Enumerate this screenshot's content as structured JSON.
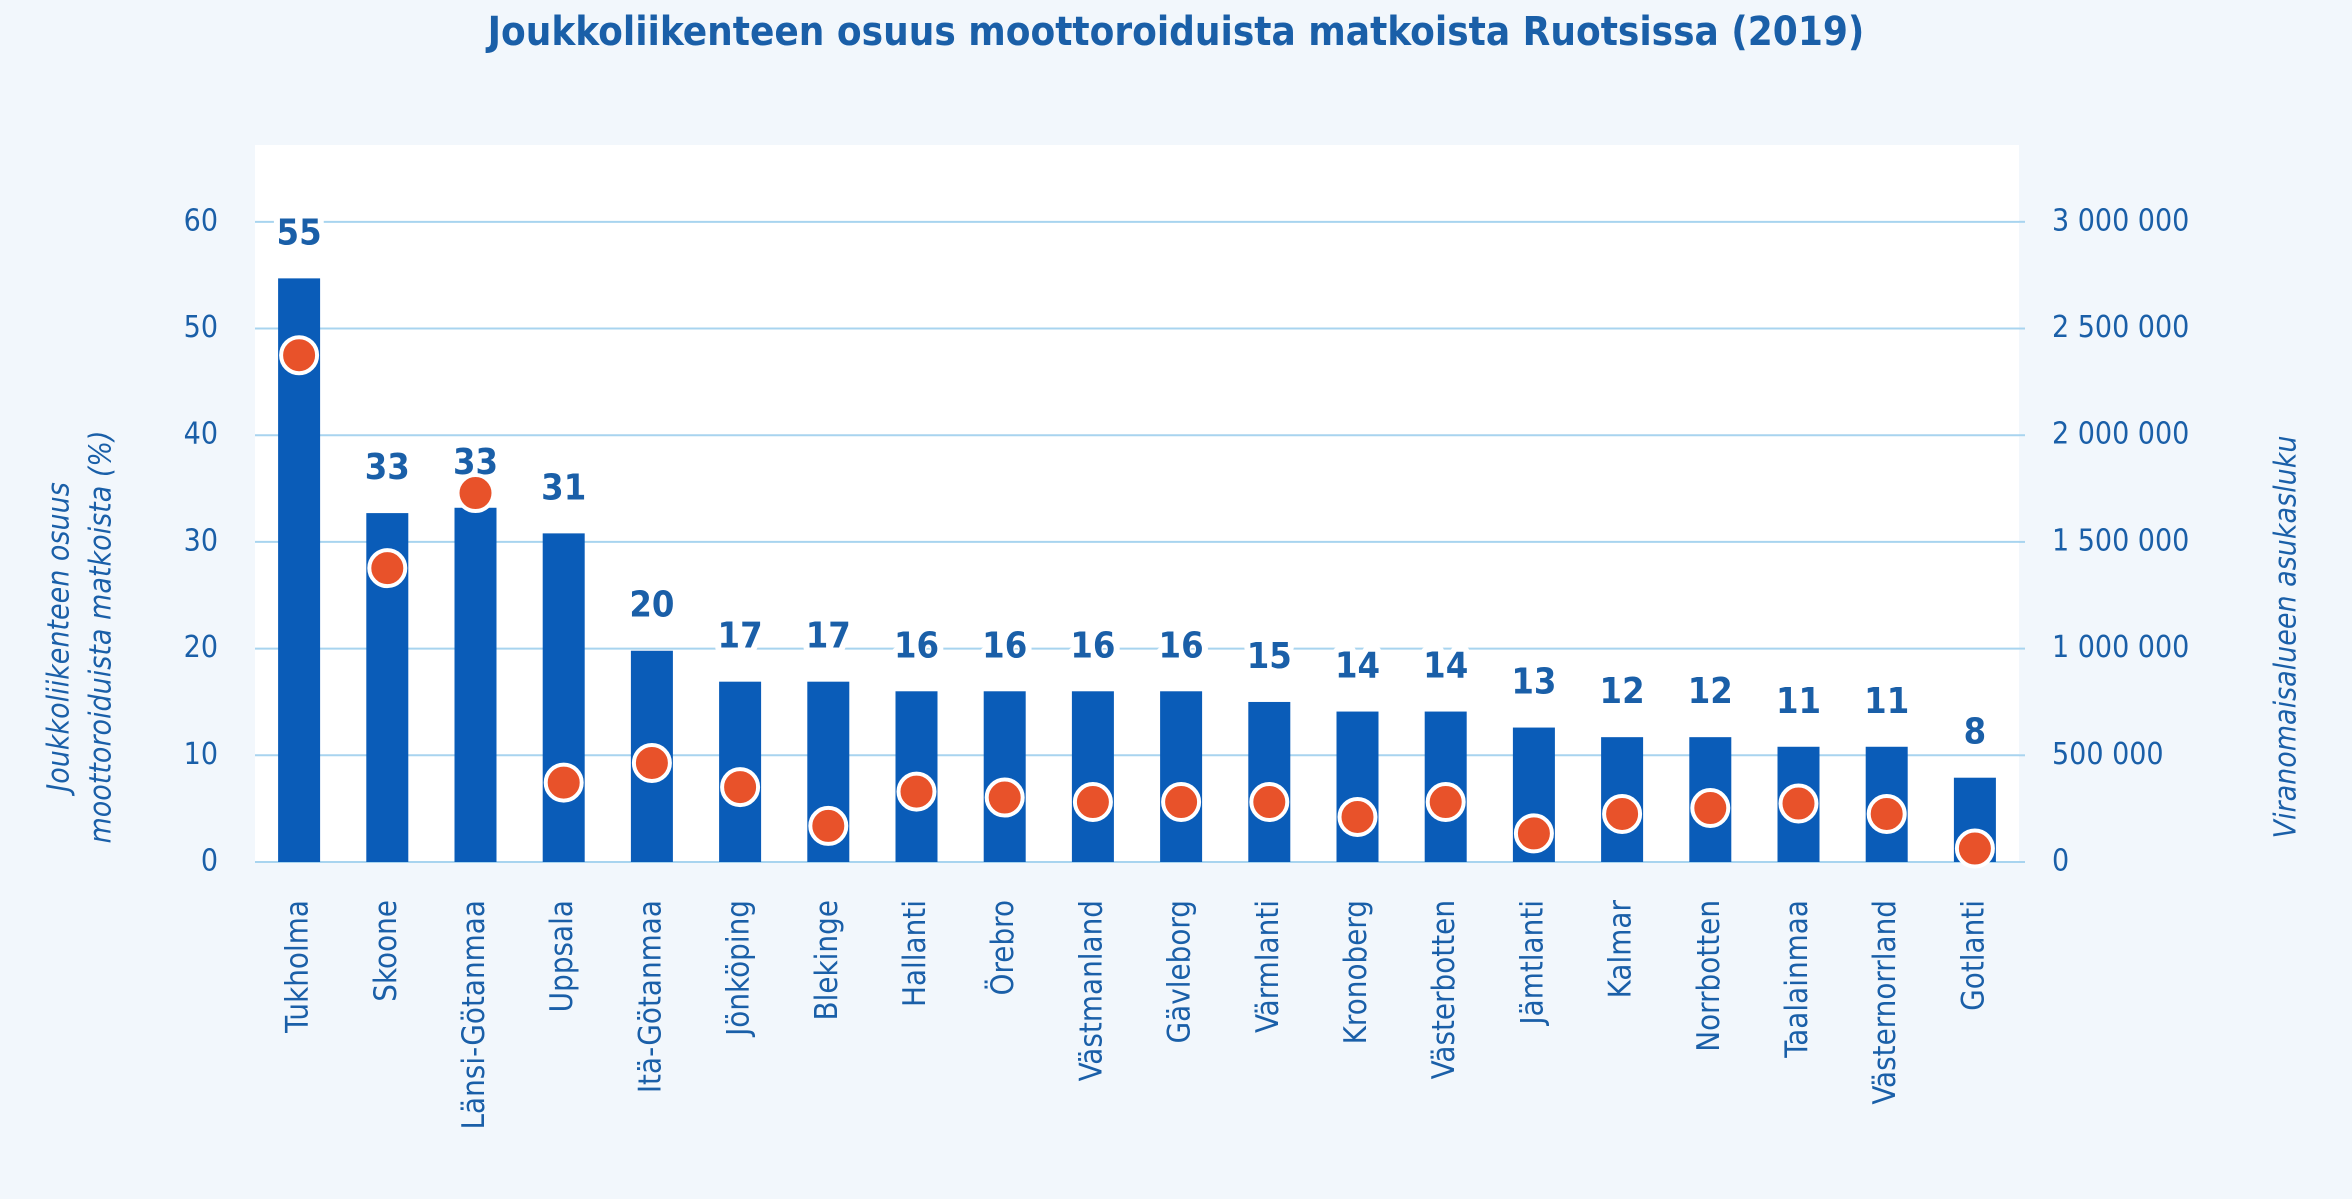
{
  "chart_data": {
    "type": "bar",
    "title": "Joukkoliikenteen osuus moottoroiduista matkoista Ruotsissa (2019)",
    "ylabel": [
      "Joukkoliikenteen osuus",
      "moottoroiduista matkoista (%)"
    ],
    "y2label": "Viranomaisalueen asukasluku",
    "categories": [
      "Tukholma",
      "Skoone",
      "Länsi-Götanmaa",
      "Uppsala",
      "Itä-Götanmaa",
      "Jönköping",
      "Blekinge",
      "Hallanti",
      "Örebro",
      "Västmanland",
      "Gävleborg",
      "Värmlanti",
      "Kronoberg",
      "Västerbotten",
      "Jämtlanti",
      "Kalmar",
      "Norrbotten",
      "Taalainmaa",
      "Västernorrland",
      "Gotlanti"
    ],
    "series": [
      {
        "type": "bar",
        "color": "#0a5cb8",
        "values": [
          54.7,
          32.7,
          33.2,
          30.8,
          19.8,
          16.9,
          16.9,
          16.0,
          16.0,
          16.0,
          16.0,
          15.0,
          14.1,
          14.1,
          12.6,
          11.7,
          11.7,
          10.8,
          10.8,
          7.9
        ],
        "value_labels": [
          "55",
          "33",
          "33",
          "31",
          "20",
          "17",
          "17",
          "16",
          "16",
          "16",
          "16",
          "15",
          "14",
          "14",
          "13",
          "12",
          "12",
          "11",
          "11",
          "8"
        ]
      },
      {
        "type": "scatter",
        "color": "#e8522a",
        "axis": "y2",
        "values": [
          2375000,
          1377000,
          1729000,
          372000,
          464000,
          351000,
          169000,
          330000,
          302000,
          281000,
          281000,
          281000,
          211000,
          281000,
          134000,
          225000,
          253000,
          274000,
          225000,
          63000
        ]
      }
    ],
    "ylim": [
      0,
      67.2
    ],
    "yticks": [
      0,
      10,
      20,
      30,
      40,
      50,
      60
    ],
    "y2lim": [
      0,
      3360000
    ],
    "y2ticks": [
      0,
      {
        "value": 500000,
        "label": "500 000"
      },
      {
        "value": 1000000,
        "label": "1 000 000"
      },
      {
        "value": 1500000,
        "label": "1 500 000"
      },
      {
        "value": 2000000,
        "label": "2 000 000"
      },
      {
        "value": 2500000,
        "label": "2 500 000"
      },
      {
        "value": 3000000,
        "label": "3 000 000"
      }
    ],
    "grid": true
  }
}
